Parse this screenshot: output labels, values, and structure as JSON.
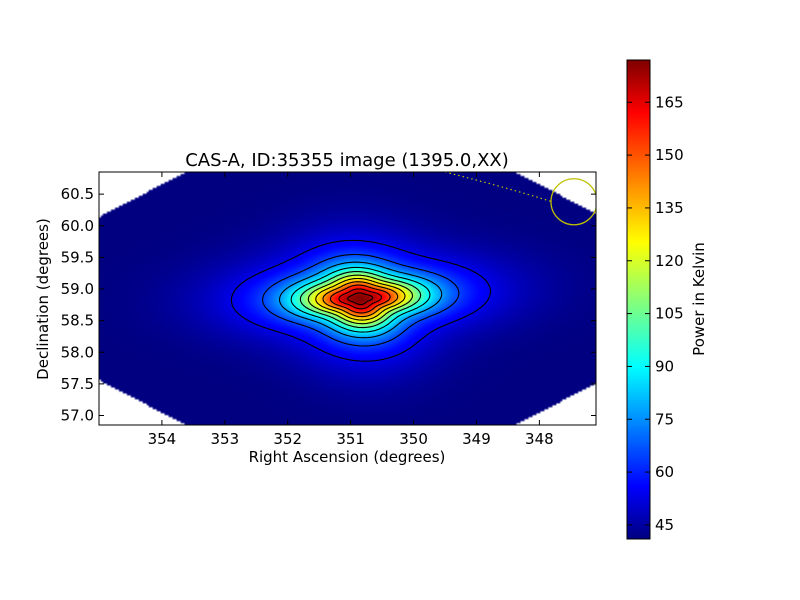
{
  "chart_data": {
    "type": "heatmap",
    "title": "CAS-A, ID:35355 image (1395.0,XX)",
    "xlabel": "Right Ascension (degrees)",
    "ylabel": "Declination (degrees)",
    "xlim": [
      355.0,
      347.1
    ],
    "ylim": [
      56.85,
      60.85
    ],
    "x_ticks": [
      354,
      353,
      352,
      351,
      350,
      349,
      348
    ],
    "y_ticks": [
      57.0,
      57.5,
      58.0,
      58.5,
      59.0,
      59.5,
      60.0,
      60.5
    ],
    "colorbar": {
      "label": "Power in Kelvin",
      "range": [
        41,
        177
      ],
      "ticks": [
        45,
        60,
        75,
        90,
        105,
        120,
        135,
        150,
        165
      ],
      "colormap": "jet"
    },
    "source": {
      "ra": 350.85,
      "dec": 58.85,
      "peak": 177,
      "background": 41
    },
    "beam_marker": {
      "ra": 347.45,
      "dec": 60.38,
      "color": "#bfbf00"
    },
    "contour_levels": [
      55,
      67,
      79,
      91,
      103,
      115,
      127,
      139,
      151,
      163,
      172
    ]
  }
}
